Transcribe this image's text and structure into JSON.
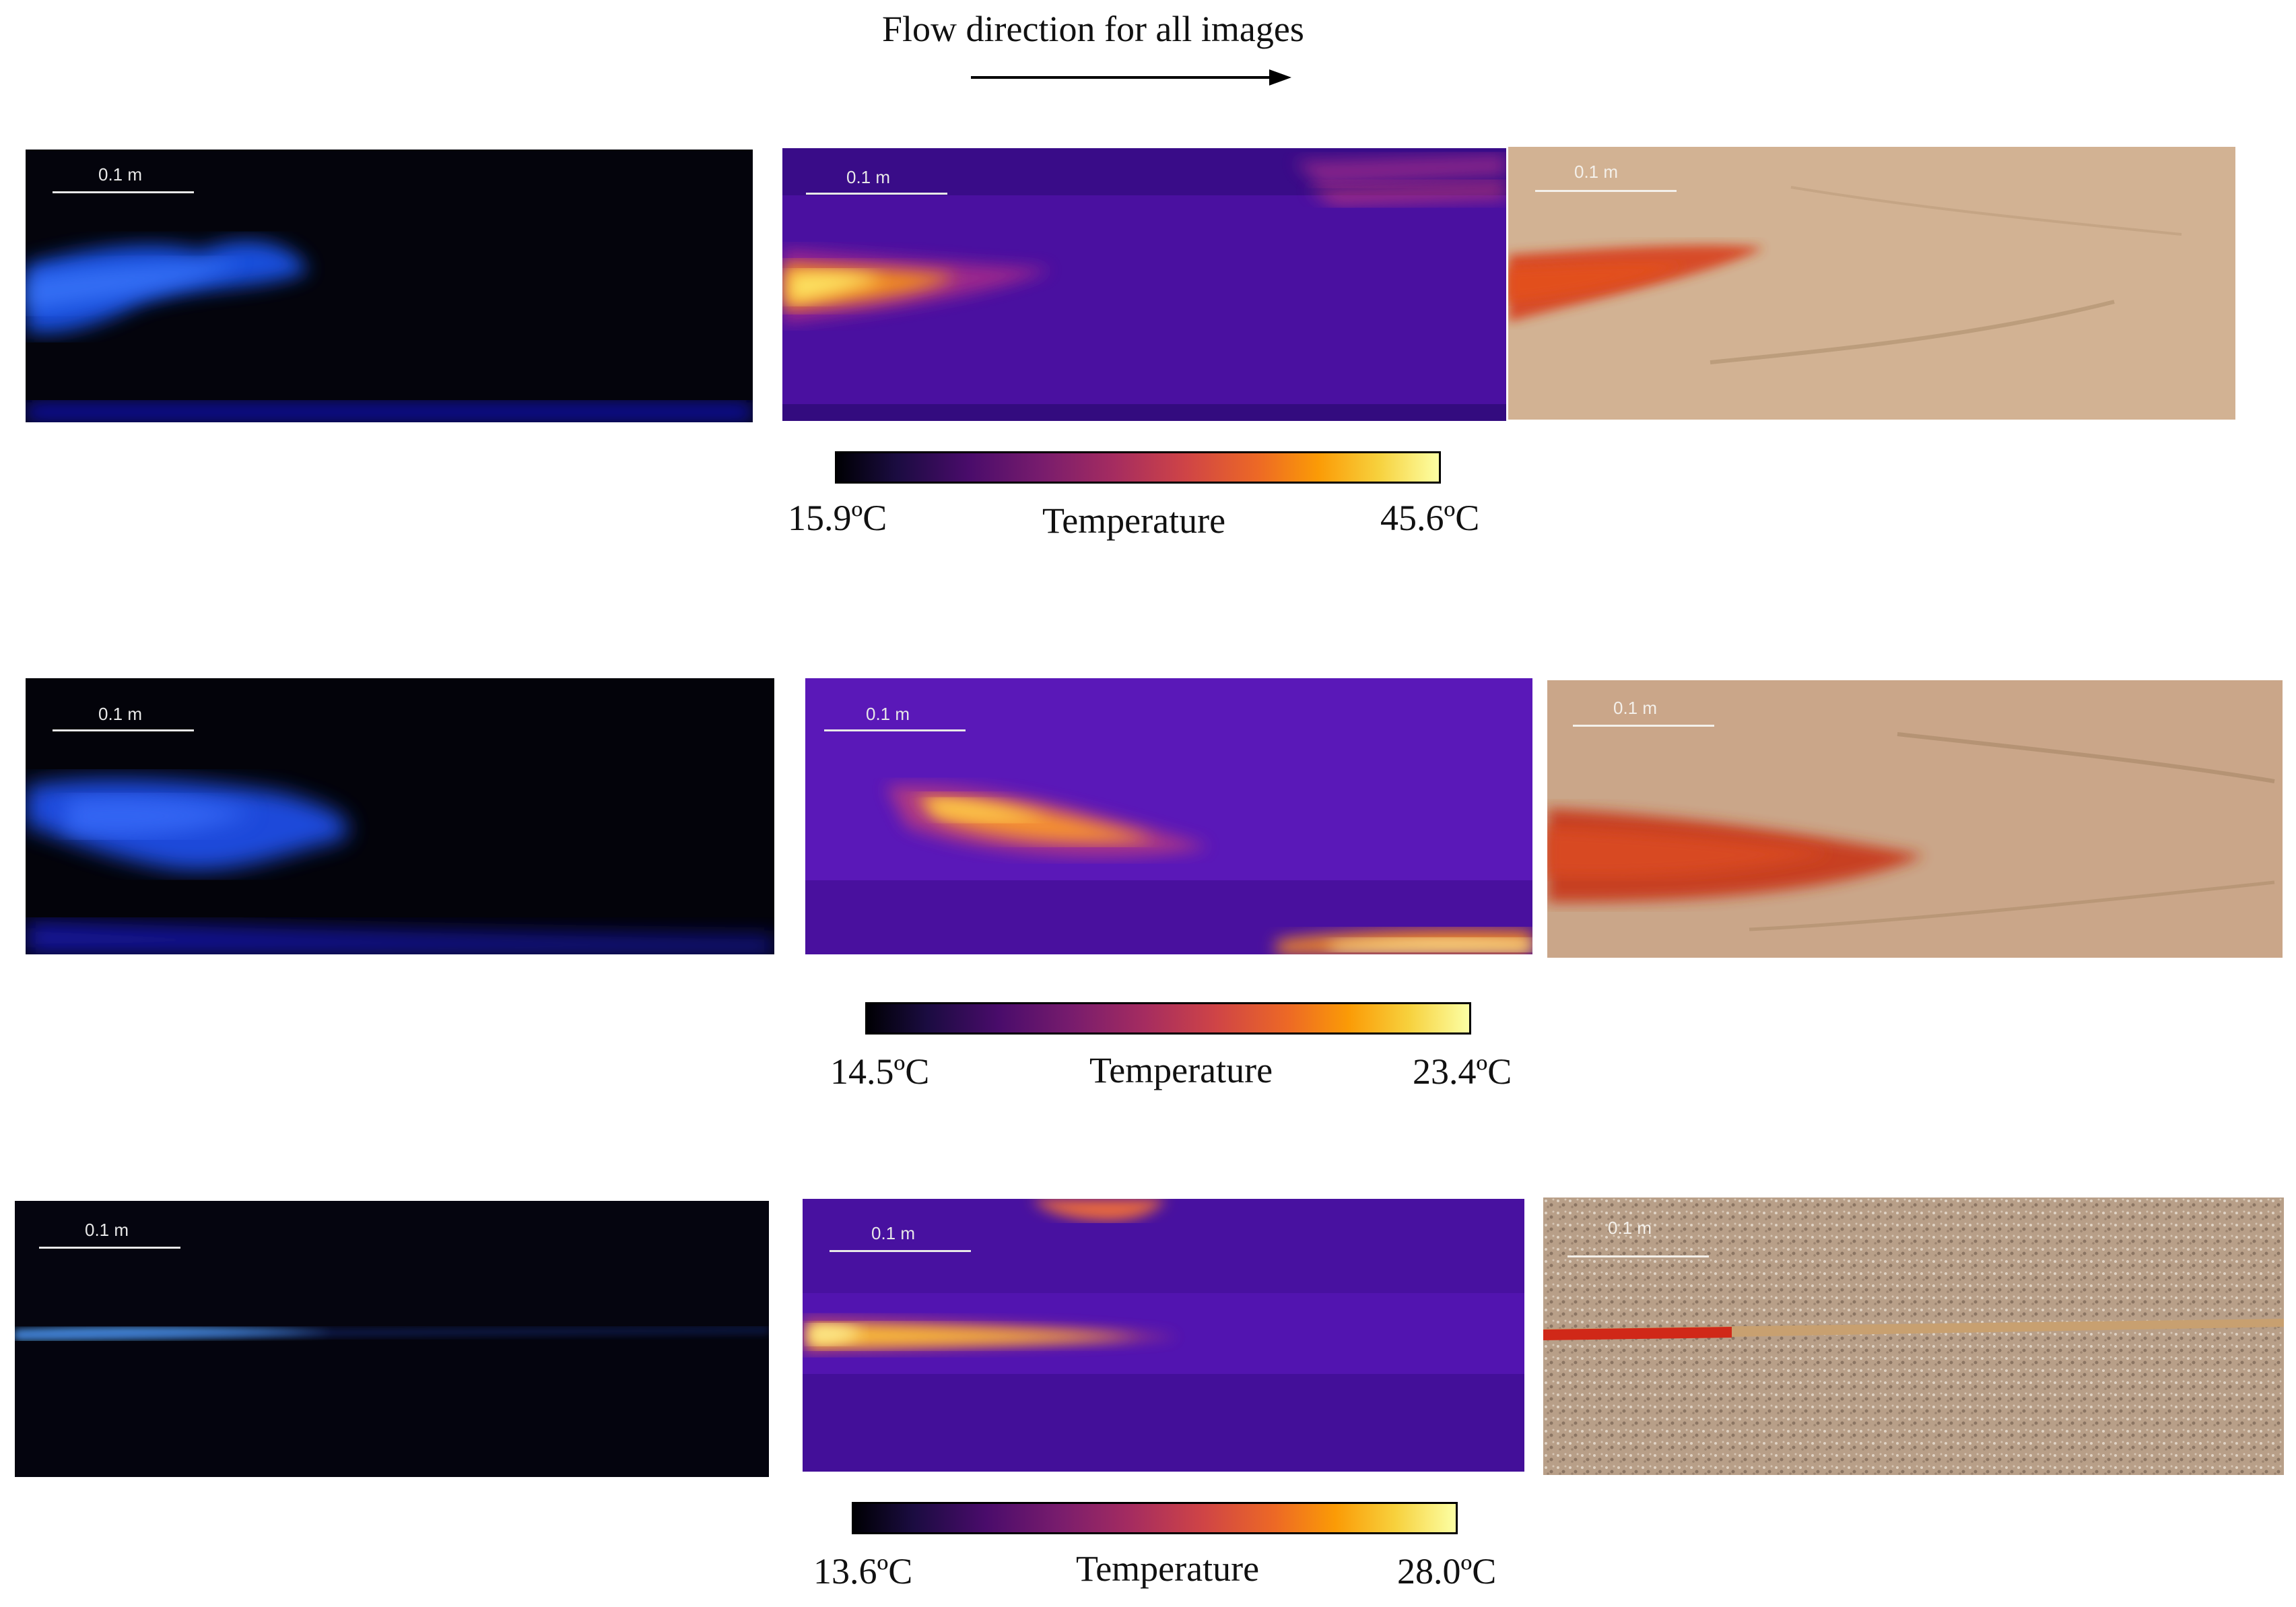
{
  "header": {
    "title": "Flow direction for all images"
  },
  "rows": [
    {
      "uv_scale": "0.1 m",
      "thermal_scale": "0.1 m",
      "photo_scale": "0.1 m",
      "colorbar": {
        "min": "15.9ºC",
        "label": "Temperature",
        "max": "45.6ºC"
      }
    },
    {
      "uv_scale": "0.1 m",
      "thermal_scale": "0.1 m",
      "photo_scale": "0.1 m",
      "colorbar": {
        "min": "14.5ºC",
        "label": "Temperature",
        "max": "23.4ºC"
      }
    },
    {
      "uv_scale": "0.1 m",
      "thermal_scale": "0.1 m",
      "photo_scale": "0.1 m",
      "colorbar": {
        "min": "13.6ºC",
        "label": "Temperature",
        "max": "28.0ºC"
      }
    }
  ]
}
